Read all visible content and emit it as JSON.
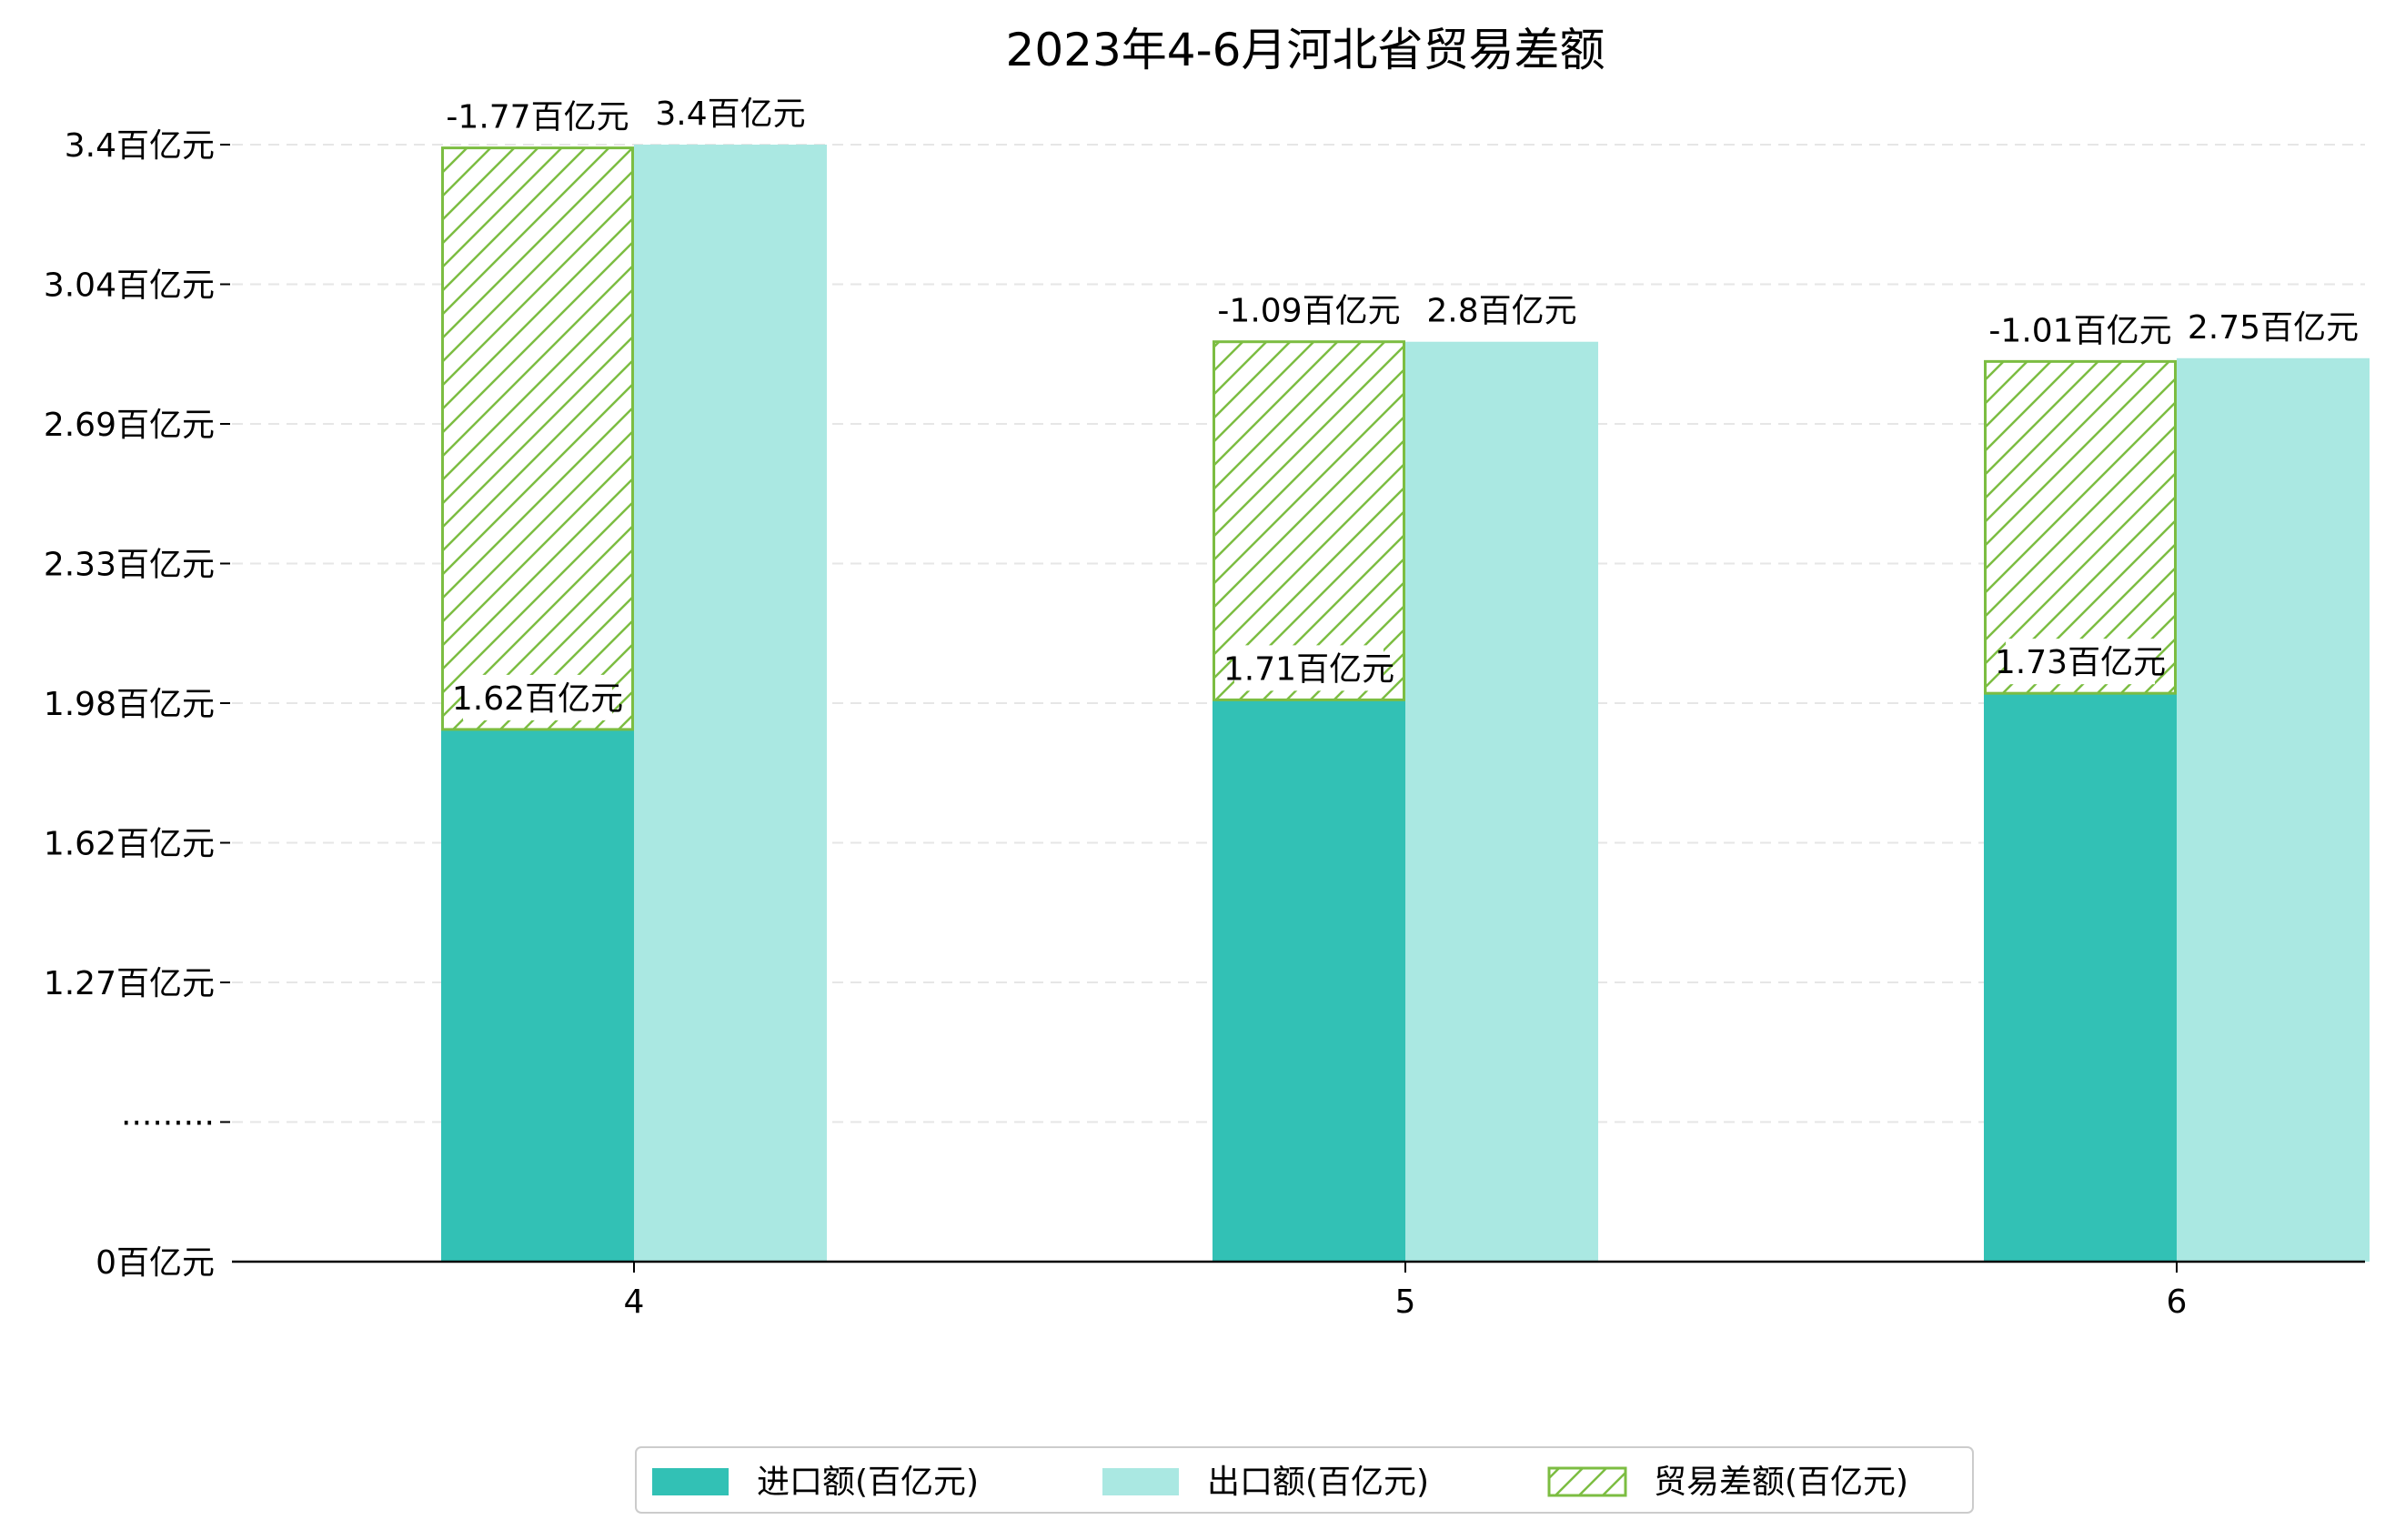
{
  "chart_data": {
    "type": "bar",
    "title": "2023年4-6月河北省贸易差额",
    "categories": [
      "4",
      "5",
      "6"
    ],
    "y_ticks": [
      "0百亿元",
      "·········",
      "1.27百亿元",
      "1.62百亿元",
      "1.98百亿元",
      "2.33百亿元",
      "2.69百亿元",
      "3.04百亿元",
      "3.4百亿元"
    ],
    "series": [
      {
        "name": "进口额(百亿元)",
        "values": [
          1.62,
          1.71,
          1.73
        ],
        "labels": [
          "1.62百亿元",
          "1.71百亿元",
          "1.73百亿元"
        ],
        "color": "#32c1b5",
        "stack": "import"
      },
      {
        "name": "出口额(百亿元)",
        "values": [
          3.4,
          2.8,
          2.75
        ],
        "labels": [
          "3.4百亿元",
          "2.8百亿元",
          "2.75百亿元"
        ],
        "color": "#aae8e2",
        "stack": "export"
      },
      {
        "name": "贸易差额(百亿元)",
        "values": [
          -1.77,
          -1.09,
          -1.01
        ],
        "labels": [
          "-1.77百亿元",
          "-1.09百亿元",
          "-1.01百亿元"
        ],
        "color": "#7cbd42",
        "pattern": "hatch",
        "stacked_on": "进口额(百亿元)"
      }
    ],
    "grid": "y-dashed",
    "legend": "bottom-center"
  }
}
